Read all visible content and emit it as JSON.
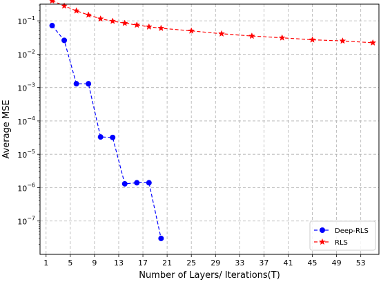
{
  "chart_data": {
    "type": "line",
    "title": "",
    "xlabel": "Number of Layers/ Iterations(T)",
    "ylabel": "Average MSE",
    "xlim": [
      0,
      56
    ],
    "ylim_log10": [
      -8,
      -0.5
    ],
    "yscale": "log",
    "grid": true,
    "legend_position": "bottom-right",
    "x_ticks": [
      1,
      5,
      9,
      13,
      17,
      21,
      25,
      29,
      33,
      37,
      41,
      45,
      49,
      53
    ],
    "y_ticks": [
      {
        "exp": -1,
        "label": "−1"
      },
      {
        "exp": -2,
        "label": "−2"
      },
      {
        "exp": -3,
        "label": "−3"
      },
      {
        "exp": -4,
        "label": "−4"
      },
      {
        "exp": -5,
        "label": "−5"
      },
      {
        "exp": -6,
        "label": "−6"
      },
      {
        "exp": -7,
        "label": "−7"
      }
    ],
    "y_tick_base": "10",
    "series": [
      {
        "name": "Deep-RLS",
        "color": "#0000ff",
        "marker": "circle",
        "x": [
          2,
          4,
          6,
          8,
          10,
          12,
          14,
          16,
          18,
          20
        ],
        "y": [
          0.072,
          0.026,
          0.0013,
          0.0013,
          3.3e-05,
          3.2e-05,
          1.3e-06,
          1.4e-06,
          1.4e-06,
          3e-08
        ]
      },
      {
        "name": "RLS",
        "color": "#ff0000",
        "marker": "star",
        "x": [
          2,
          4,
          6,
          8,
          10,
          12,
          14,
          16,
          18,
          20,
          25,
          30,
          35,
          40,
          45,
          50,
          55
        ],
        "y": [
          0.4,
          0.28,
          0.2,
          0.15,
          0.115,
          0.098,
          0.085,
          0.075,
          0.066,
          0.06,
          0.05,
          0.041,
          0.035,
          0.031,
          0.027,
          0.025,
          0.022
        ]
      }
    ]
  }
}
